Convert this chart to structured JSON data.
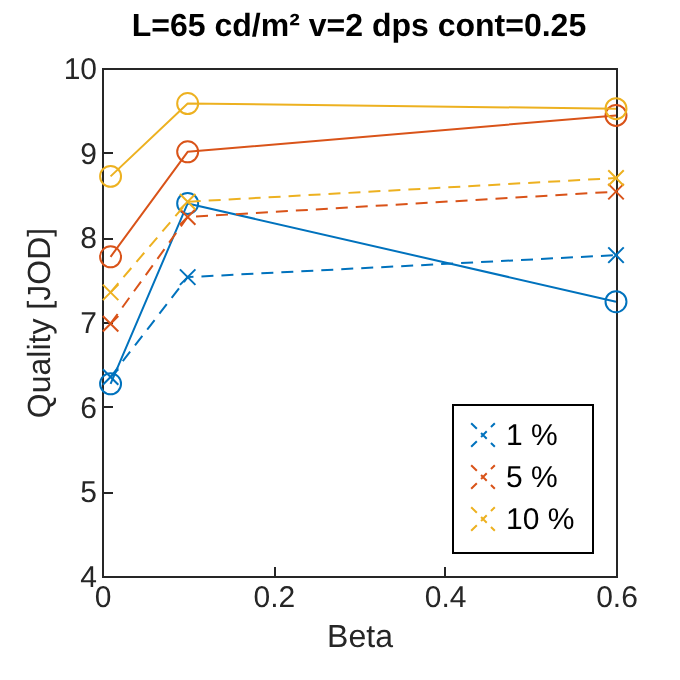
{
  "chart_data": {
    "type": "line",
    "title": "L=65 cd/m²  v=2 dps  cont=0.25",
    "xlabel": "Beta",
    "ylabel": "Quality [JOD]",
    "x": [
      0.01,
      0.1,
      0.6
    ],
    "xlim": [
      0,
      0.6
    ],
    "xticks": [
      0,
      0.2,
      0.4,
      0.6
    ],
    "ylim": [
      4,
      10
    ],
    "yticks": [
      4,
      5,
      6,
      7,
      8,
      9,
      10
    ],
    "grid": false,
    "legend": "bottom right",
    "series": [
      {
        "color": "#0072bd",
        "marker": "circle",
        "line_style": "solid",
        "values": [
          6.27,
          8.4,
          7.24
        ]
      },
      {
        "color": "#d95319",
        "marker": "circle",
        "line_style": "solid",
        "values": [
          7.77,
          9.01,
          9.44
        ]
      },
      {
        "color": "#edb120",
        "marker": "circle",
        "line_style": "solid",
        "values": [
          8.72,
          9.58,
          9.52
        ]
      },
      {
        "name": "1 %",
        "color": "#0072bd",
        "marker": "cross",
        "line_style": "dashed",
        "values": [
          6.35,
          7.53,
          7.79
        ]
      },
      {
        "name": "5 %",
        "color": "#d95319",
        "marker": "cross",
        "line_style": "dashed",
        "values": [
          6.98,
          8.24,
          8.54
        ]
      },
      {
        "name": "10 %",
        "color": "#edb120",
        "marker": "cross",
        "line_style": "dashed",
        "values": [
          7.35,
          8.42,
          8.7
        ]
      }
    ]
  }
}
